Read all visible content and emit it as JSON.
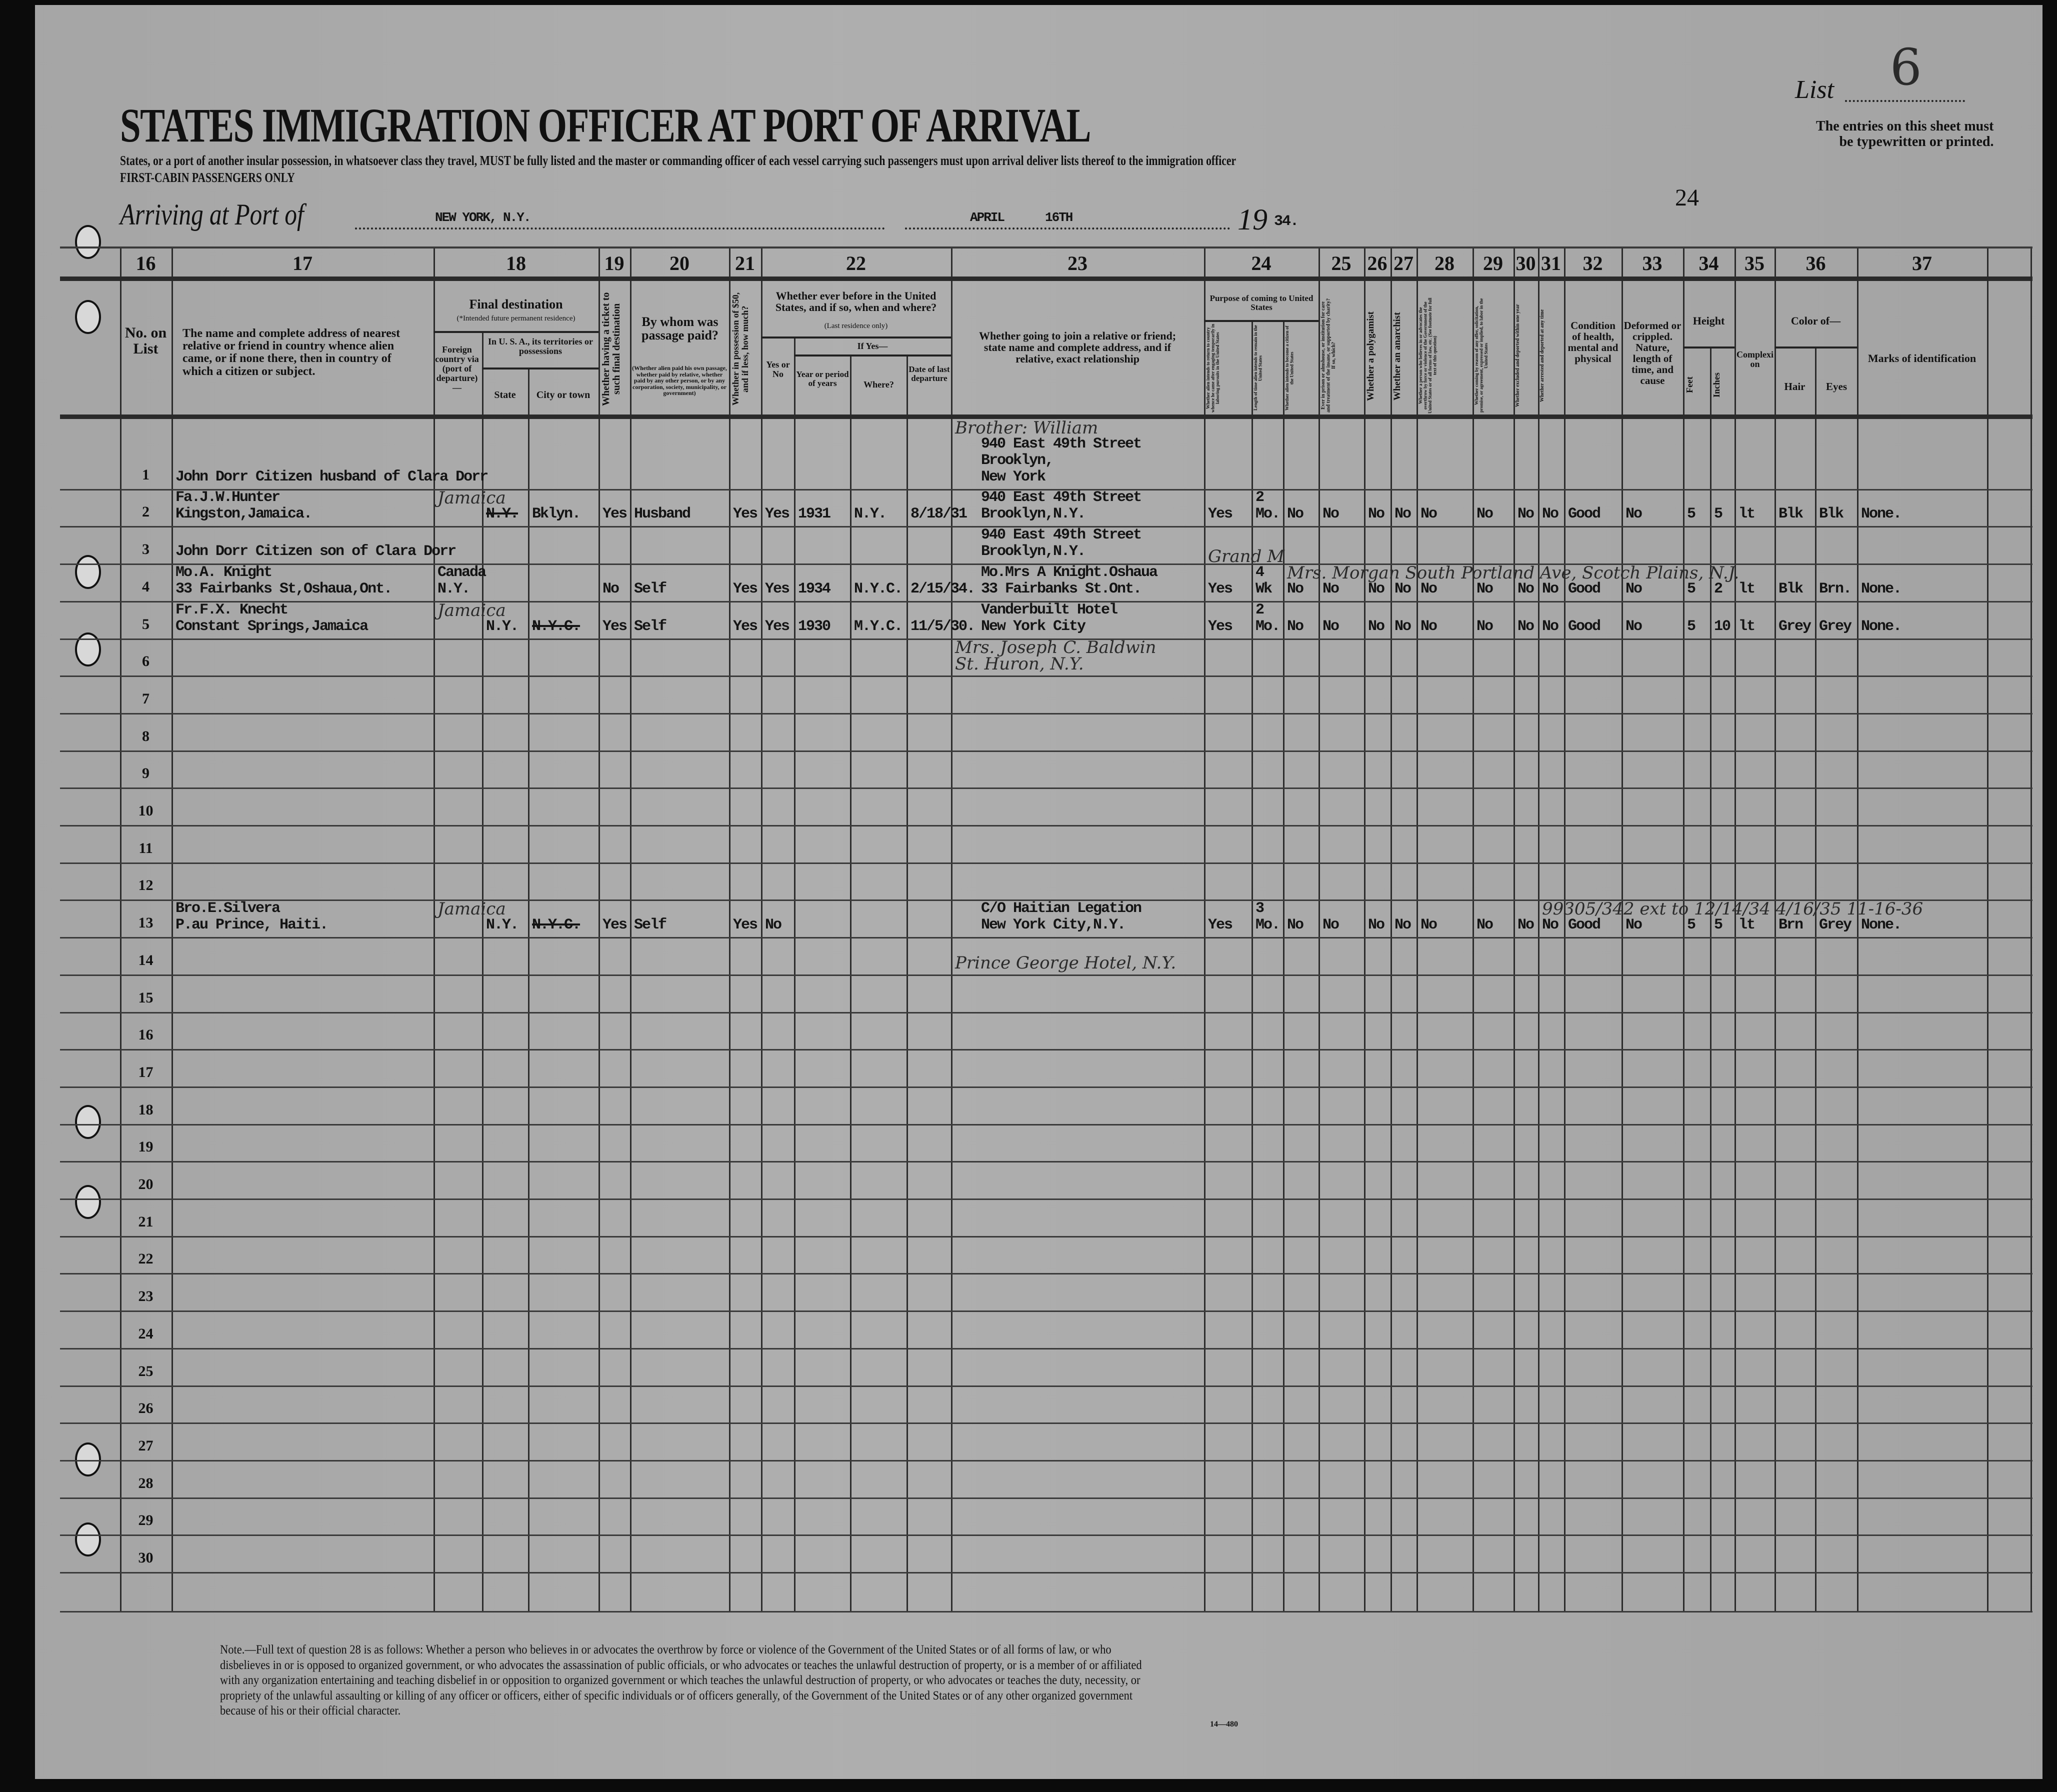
{
  "header": {
    "title": "STATES IMMIGRATION OFFICER AT PORT OF ARRIVAL",
    "subtitle": "States, or a port of another insular possession, in whatsoever class they travel, MUST be fully listed and the master or commanding officer of each vessel carrying such passengers must upon arrival deliver lists thereof to the immigration officer",
    "class_line": "FIRST-CABIN PASSENGERS ONLY",
    "list_label": "List",
    "list_number": "6",
    "entries_note": [
      "The entries on this sheet must",
      "be typewritten or printed."
    ],
    "arriving_label": "Arriving at Port of",
    "port": "NEW YORK, N.Y.",
    "month": "APRIL",
    "day": "16TH",
    "year_prefix": "19",
    "year_suffix": "34.",
    "page_mark": "24"
  },
  "columns": {
    "numbers": {
      "no": "16",
      "rel": "17",
      "dest": "18",
      "ticket": "19",
      "paid": "20",
      "c21": "21",
      "before": "22",
      "c23": "23",
      "c24": "24",
      "c25": "25",
      "c26": "26",
      "c27": "27",
      "c28": "28",
      "c29": "29",
      "c30": "30",
      "c31": "31",
      "c32": "32",
      "c33": "33",
      "c34": "34",
      "c35": "35",
      "c36": "36",
      "c37": "37"
    },
    "no": "No. on List",
    "rel": "The name and complete address of nearest relative or friend in country whence alien came, or if none there, then in country of which a citizen or subject.",
    "dest": "Final destination",
    "dest_note": "(*Intended future permanent residence)",
    "foreign": "Foreign country via (port of departure)—",
    "usa": "In U. S. A., its territories or possessions",
    "state": "State",
    "city": "City or town",
    "ticket": "Whether having a ticket to such final destination",
    "paid": "By whom was passage paid?",
    "paid_note": "(Whether alien paid his own passage, whether paid by relative, whether paid by any other person, or by any corporation, society, municipality, or government)",
    "c21": "Whether in possession of $50, and if less, how much?",
    "before": "Whether ever before in the United States, and if so, when and where?",
    "before_note": "(Last residence only)",
    "yes_no": "Yes or No",
    "if_yes": "If Yes—",
    "year": "Year or period of years",
    "where": "Where?",
    "date": "Date of last departure",
    "c23": "Whether going to join a relative or friend; state name and complete address, and if relative, exact relationship",
    "c24": "Purpose of coming to United States",
    "c24a": "Whether alien intends to return to country whence he came after engaging temporarily in laboring pursuits in the United States",
    "c24b": "Length of time alien intends to remain in the United States",
    "c24c": "Whether alien intends to become a citizen of the United States",
    "c25": "Ever in prison or almshouse, or institution for care and treatment of the insane, or supported by charity? If so, which?",
    "c26": "Whether a polygamist",
    "c27": "Whether an anarchist",
    "c28": "Whether a person who believes in or advocates the overthrow by force or violence of the Government of the United States or of all forms of law, etc. (See footnote for full text of this question)",
    "c29": "Whether coming by reason of any offer, solicitation, promise, or agreement, expressed or implied, to labor in the United States",
    "c30": "Whether excluded and deported within one year",
    "c31": "Whether arrested and deported at any time",
    "c32": "Condition of health, mental and physical",
    "c33": "Deformed or crippled. Nature, length of time, and cause",
    "height": "Height",
    "feet": "Feet",
    "inches": "Inches",
    "c35": "Complexion",
    "color": "Color of—",
    "hair": "Hair",
    "eyes": "Eyes",
    "c37": "Marks of identification"
  },
  "row_numbers": [
    "1",
    "2",
    "3",
    "4",
    "5",
    "6",
    "7",
    "8",
    "9",
    "10",
    "11",
    "12",
    "13",
    "14",
    "15",
    "16",
    "17",
    "18",
    "19",
    "20",
    "21",
    "22",
    "23",
    "24",
    "25",
    "26",
    "27",
    "28",
    "29",
    "30"
  ],
  "entries": [
    {
      "row": 1,
      "col": "rel",
      "lines": [
        "John Dorr  Citizen husband of Clara Dorr"
      ]
    },
    {
      "row": 1,
      "col": "c23",
      "hand": true,
      "lift": 3,
      "lines": [
        "Brother: William"
      ]
    },
    {
      "row": 1,
      "col": "c23",
      "lines": [
        "940 East 49th Street",
        "  Brooklyn,",
        "New York"
      ]
    },
    {
      "row": 2,
      "col": "rel",
      "lines": [
        "Fa.J.W.Hunter",
        "Kingston,Jamaica."
      ]
    },
    {
      "row": 2,
      "col": "foreign",
      "hand": true,
      "lines": [
        "Jamaica"
      ]
    },
    {
      "row": 2,
      "col": "state",
      "strike": true,
      "lines": [
        "N.Y."
      ]
    },
    {
      "row": 2,
      "col": "city",
      "lines": [
        "Bklyn."
      ]
    },
    {
      "row": 2,
      "col": "ticket",
      "lines": [
        "Yes"
      ]
    },
    {
      "row": 2,
      "col": "paid",
      "lines": [
        "Husband"
      ]
    },
    {
      "row": 2,
      "col": "c21",
      "lines": [
        "Yes"
      ]
    },
    {
      "row": 2,
      "col": "yn",
      "lines": [
        "Yes"
      ]
    },
    {
      "row": 2,
      "col": "year",
      "lines": [
        "1931"
      ]
    },
    {
      "row": 2,
      "col": "where",
      "lines": [
        "N.Y."
      ]
    },
    {
      "row": 2,
      "col": "date",
      "lines": [
        "8/18/31"
      ]
    },
    {
      "row": 2,
      "col": "c23",
      "lines": [
        "940 East 49th Street",
        "  Brooklyn,N.Y."
      ]
    },
    {
      "row": 2,
      "col": "c24a",
      "lines": [
        "Yes"
      ]
    },
    {
      "row": 2,
      "col": "c24b",
      "lines": [
        "2",
        "Mo."
      ]
    },
    {
      "row": 2,
      "col": "c24c",
      "lines": [
        "No"
      ]
    },
    {
      "row": 2,
      "col": "c25",
      "lines": [
        "No"
      ]
    },
    {
      "row": 2,
      "col": "c26",
      "lines": [
        "No"
      ]
    },
    {
      "row": 2,
      "col": "c27",
      "lines": [
        "No"
      ]
    },
    {
      "row": 2,
      "col": "c28",
      "lines": [
        "No"
      ]
    },
    {
      "row": 2,
      "col": "c29",
      "lines": [
        "No"
      ]
    },
    {
      "row": 2,
      "col": "c30",
      "lines": [
        "No"
      ]
    },
    {
      "row": 2,
      "col": "c31",
      "lines": [
        "No"
      ]
    },
    {
      "row": 2,
      "col": "c32",
      "lines": [
        "Good"
      ]
    },
    {
      "row": 2,
      "col": "c33",
      "lines": [
        "No"
      ]
    },
    {
      "row": 2,
      "col": "feet",
      "lines": [
        "5"
      ]
    },
    {
      "row": 2,
      "col": "inches",
      "lines": [
        "5"
      ]
    },
    {
      "row": 2,
      "col": "c35",
      "lines": [
        "lt"
      ]
    },
    {
      "row": 2,
      "col": "hair",
      "lines": [
        "Blk"
      ]
    },
    {
      "row": 2,
      "col": "eyes",
      "lines": [
        "Blk"
      ]
    },
    {
      "row": 2,
      "col": "c37",
      "lines": [
        "None."
      ]
    },
    {
      "row": 3,
      "col": "rel",
      "lines": [
        "John Dorr   Citizen son of Clara Dorr"
      ]
    },
    {
      "row": 3,
      "col": "c23",
      "lines": [
        "940 East 49th Street",
        "  Brooklyn,N.Y."
      ]
    },
    {
      "row": 4,
      "col": "rel",
      "lines": [
        "Mo.A. Knight",
        "33 Fairbanks St,Oshaua,Ont."
      ]
    },
    {
      "row": 4,
      "col": "foreign",
      "lines": [
        "Canada",
        "N.Y."
      ]
    },
    {
      "row": 4,
      "col": "ticket",
      "lines": [
        "No"
      ]
    },
    {
      "row": 4,
      "col": "paid",
      "lines": [
        "Self"
      ]
    },
    {
      "row": 4,
      "col": "c21",
      "lines": [
        "Yes"
      ]
    },
    {
      "row": 4,
      "col": "yn",
      "lines": [
        "Yes"
      ]
    },
    {
      "row": 4,
      "col": "year",
      "lines": [
        "1934"
      ]
    },
    {
      "row": 4,
      "col": "where",
      "lines": [
        "N.Y.C."
      ]
    },
    {
      "row": 4,
      "col": "date",
      "lines": [
        "2/15/34."
      ]
    },
    {
      "row": 4,
      "col": "c23",
      "lines": [
        "Mo.Mrs A Knight.Oshaua",
        "33 Fairbanks St.Ont."
      ]
    },
    {
      "row": 4,
      "col": "c24a",
      "hand": true,
      "lift": 1,
      "lines": [
        "Grand M"
      ]
    },
    {
      "row": 4,
      "col": "c24a",
      "lines": [
        "Yes"
      ]
    },
    {
      "row": 4,
      "col": "c24b",
      "lines": [
        "4",
        "Wk"
      ]
    },
    {
      "row": 4,
      "col": "c24c",
      "lines": [
        "No"
      ]
    },
    {
      "row": 4,
      "col": "c24c",
      "hand": true,
      "lift": 1,
      "lines": [
        "Mrs. Morgan    South Portland Ave, Scotch Plains, N.J."
      ]
    },
    {
      "row": 4,
      "col": "c25",
      "lines": [
        "No"
      ]
    },
    {
      "row": 4,
      "col": "c26",
      "lines": [
        "No"
      ]
    },
    {
      "row": 4,
      "col": "c27",
      "lines": [
        "No"
      ]
    },
    {
      "row": 4,
      "col": "c28",
      "lines": [
        "No"
      ]
    },
    {
      "row": 4,
      "col": "c30",
      "lines": [
        "No"
      ]
    },
    {
      "row": 4,
      "col": "c31",
      "lines": [
        "No"
      ]
    },
    {
      "row": 4,
      "col": "c29",
      "lines": [
        "No"
      ]
    },
    {
      "row": 4,
      "col": "c32",
      "lines": [
        "Good"
      ]
    },
    {
      "row": 4,
      "col": "c33",
      "lines": [
        "No"
      ]
    },
    {
      "row": 4,
      "col": "feet",
      "lines": [
        "5"
      ]
    },
    {
      "row": 4,
      "col": "inches",
      "lines": [
        "2"
      ]
    },
    {
      "row": 4,
      "col": "c35",
      "lines": [
        "lt"
      ]
    },
    {
      "row": 4,
      "col": "hair",
      "lines": [
        "Blk"
      ]
    },
    {
      "row": 4,
      "col": "eyes",
      "lines": [
        "Brn."
      ]
    },
    {
      "row": 4,
      "col": "c37",
      "lines": [
        "None."
      ]
    },
    {
      "row": 5,
      "col": "rel",
      "lines": [
        "Fr.F.X. Knecht",
        "Constant Springs,Jamaica"
      ]
    },
    {
      "row": 5,
      "col": "foreign",
      "hand": true,
      "lines": [
        "Jamaica"
      ]
    },
    {
      "row": 5,
      "col": "state",
      "lines": [
        "N.Y."
      ]
    },
    {
      "row": 5,
      "col": "city",
      "strike": true,
      "lines": [
        "N.Y.C."
      ]
    },
    {
      "row": 5,
      "col": "ticket",
      "lines": [
        "Yes"
      ]
    },
    {
      "row": 5,
      "col": "paid",
      "lines": [
        "Self"
      ]
    },
    {
      "row": 5,
      "col": "c21",
      "lines": [
        "Yes"
      ]
    },
    {
      "row": 5,
      "col": "yn",
      "lines": [
        "Yes"
      ]
    },
    {
      "row": 5,
      "col": "year",
      "lines": [
        "1930"
      ]
    },
    {
      "row": 5,
      "col": "where",
      "lines": [
        "M.Y.C."
      ]
    },
    {
      "row": 5,
      "col": "date",
      "lines": [
        "11/5/30."
      ]
    },
    {
      "row": 5,
      "col": "c23",
      "lines": [
        "Vanderbuilt Hotel",
        "New York City"
      ]
    },
    {
      "row": 5,
      "col": "c24a",
      "lines": [
        "Yes"
      ]
    },
    {
      "row": 5,
      "col": "c24b",
      "lines": [
        "2",
        "Mo."
      ]
    },
    {
      "row": 5,
      "col": "c24c",
      "lines": [
        "No"
      ]
    },
    {
      "row": 5,
      "col": "c25",
      "lines": [
        "No"
      ]
    },
    {
      "row": 5,
      "col": "c26",
      "lines": [
        "No"
      ]
    },
    {
      "row": 5,
      "col": "c27",
      "lines": [
        "No"
      ]
    },
    {
      "row": 5,
      "col": "c28",
      "lines": [
        "No"
      ]
    },
    {
      "row": 5,
      "col": "c29",
      "lines": [
        "No"
      ]
    },
    {
      "row": 5,
      "col": "c30",
      "lines": [
        "No"
      ]
    },
    {
      "row": 5,
      "col": "c31",
      "lines": [
        "No"
      ]
    },
    {
      "row": 5,
      "col": "c32",
      "lines": [
        "Good"
      ]
    },
    {
      "row": 5,
      "col": "c33",
      "lines": [
        "No"
      ]
    },
    {
      "row": 5,
      "col": "feet",
      "lines": [
        "5"
      ]
    },
    {
      "row": 5,
      "col": "inches",
      "lines": [
        "10"
      ]
    },
    {
      "row": 5,
      "col": "c35",
      "lines": [
        "lt"
      ]
    },
    {
      "row": 5,
      "col": "hair",
      "lines": [
        "Grey"
      ]
    },
    {
      "row": 5,
      "col": "eyes",
      "lines": [
        "Grey"
      ]
    },
    {
      "row": 5,
      "col": "c37",
      "lines": [
        "None."
      ]
    },
    {
      "row": 6,
      "col": "c23",
      "hand": true,
      "lines": [
        "Mrs. Joseph C. Baldwin",
        "St. Huron, N.Y."
      ]
    },
    {
      "row": 13,
      "col": "rel",
      "lines": [
        "Bro.E.Silvera",
        "P.au Prince, Haiti."
      ]
    },
    {
      "row": 13,
      "col": "foreign",
      "hand": true,
      "lines": [
        "Jamaica"
      ]
    },
    {
      "row": 13,
      "col": "state",
      "lines": [
        "N.Y."
      ]
    },
    {
      "row": 13,
      "col": "city",
      "strike": true,
      "lines": [
        "N.Y.C."
      ]
    },
    {
      "row": 13,
      "col": "ticket",
      "lines": [
        "Yes"
      ]
    },
    {
      "row": 13,
      "col": "paid",
      "lines": [
        "Self"
      ]
    },
    {
      "row": 13,
      "col": "c21",
      "lines": [
        "Yes"
      ]
    },
    {
      "row": 13,
      "col": "yn",
      "lines": [
        "No"
      ]
    },
    {
      "row": 13,
      "col": "c23",
      "lines": [
        "C/O Haitian Legation",
        "New York City,N.Y."
      ]
    },
    {
      "row": 14,
      "col": "c23",
      "hand": true,
      "lift": 1,
      "lines": [
        "Prince George Hotel, N.Y."
      ]
    },
    {
      "row": 13,
      "col": "c24a",
      "lines": [
        "Yes"
      ]
    },
    {
      "row": 13,
      "col": "c24b",
      "lines": [
        "3",
        "Mo."
      ]
    },
    {
      "row": 13,
      "col": "c24c",
      "lines": [
        "No"
      ]
    },
    {
      "row": 13,
      "col": "c25",
      "lines": [
        "No"
      ]
    },
    {
      "row": 13,
      "col": "c26",
      "lines": [
        "No"
      ]
    },
    {
      "row": 13,
      "col": "c27",
      "lines": [
        "No"
      ]
    },
    {
      "row": 13,
      "col": "c28",
      "lines": [
        "No"
      ]
    },
    {
      "row": 13,
      "col": "c29",
      "lines": [
        "No"
      ]
    },
    {
      "row": 13,
      "col": "c30",
      "lines": [
        "No"
      ]
    },
    {
      "row": 13,
      "col": "c31",
      "lines": [
        "No"
      ]
    },
    {
      "row": 13,
      "col": "c32",
      "lines": [
        "Good"
      ]
    },
    {
      "row": 13,
      "col": "c33",
      "lines": [
        "No"
      ]
    },
    {
      "row": 13,
      "col": "feet",
      "lines": [
        "5"
      ]
    },
    {
      "row": 13,
      "col": "inches",
      "lines": [
        "5"
      ]
    },
    {
      "row": 13,
      "col": "c35",
      "lines": [
        "lt"
      ]
    },
    {
      "row": 13,
      "col": "hair",
      "lines": [
        "Brn"
      ]
    },
    {
      "row": 13,
      "col": "eyes",
      "lines": [
        "Grey"
      ]
    },
    {
      "row": 13,
      "col": "c37",
      "lines": [
        "None."
      ]
    },
    {
      "row": 13,
      "col": "c31",
      "hand": true,
      "lift": 1,
      "lines": [
        "99305/342 ext to 12/14/34  4/16/35   11-16-36"
      ]
    }
  ],
  "footnote": "Note.—Full text of question 28 is as follows: Whether a person who believes in or advocates the overthrow by force or violence of the Government of the United States or of all forms of law, or who disbelieves in or is opposed to organized government, or who advocates the assassination of public officials, or who advocates or teaches the unlawful destruction of property, or is a member of or affiliated with any organization entertaining and teaching disbelief in or opposition to organized government or which teaches the unlawful destruction of property, or who advocates or teaches the duty, necessity, or propriety of the unlawful assaulting or killing of any officer or officers, either of specific individuals or of officers generally, of the Government of the United States or of any other organized government because of his or their official character.",
  "form_number": "14—480"
}
